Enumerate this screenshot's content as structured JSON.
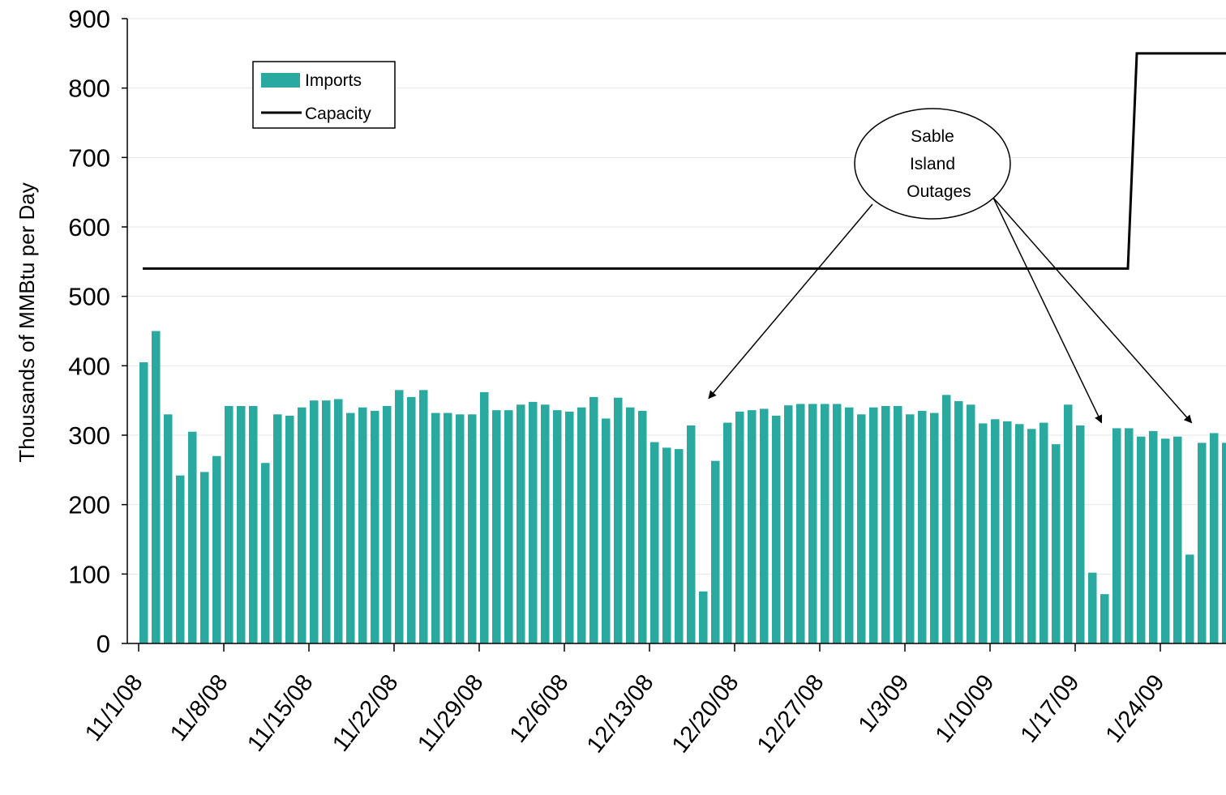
{
  "chart_data": {
    "type": "bar",
    "title": "",
    "xlabel": "",
    "ylabel": "Thousands of MMBtu per Day",
    "ylim": [
      0,
      900
    ],
    "yticks": [
      0,
      100,
      200,
      300,
      400,
      500,
      600,
      700,
      800,
      900
    ],
    "grid": true,
    "legend_position": "top-left",
    "x_start": "11/1/08",
    "x_tick_labels": [
      "11/1/08",
      "11/8/08",
      "11/15/08",
      "11/22/08",
      "11/29/08",
      "12/6/08",
      "12/13/08",
      "12/20/08",
      "12/27/08",
      "1/3/09",
      "1/10/09",
      "1/17/09",
      "1/24/09"
    ],
    "series": [
      {
        "name": "Imports",
        "type": "bar",
        "color": "#2aa9a1",
        "values": [
          405,
          450,
          330,
          242,
          305,
          247,
          270,
          342,
          342,
          342,
          260,
          330,
          328,
          340,
          350,
          350,
          352,
          332,
          340,
          335,
          342,
          365,
          355,
          365,
          332,
          332,
          330,
          330,
          362,
          336,
          336,
          344,
          348,
          344,
          336,
          334,
          340,
          355,
          324,
          354,
          340,
          335,
          290,
          282,
          280,
          314,
          75,
          263,
          318,
          334,
          336,
          338,
          328,
          343,
          345,
          345,
          345,
          345,
          340,
          330,
          340,
          342,
          342,
          330,
          335,
          332,
          358,
          349,
          344,
          317,
          323,
          320,
          316,
          309,
          318,
          287,
          344,
          314,
          102,
          71,
          310,
          310,
          298,
          306,
          295,
          298,
          128,
          289,
          303,
          289
        ]
      },
      {
        "name": "Capacity",
        "type": "line",
        "color": "#000000",
        "segments": [
          {
            "from_day": 0,
            "to_day": 81,
            "value": 540
          },
          {
            "from_day": 82,
            "to_day": 90,
            "value": 850
          }
        ]
      }
    ],
    "annotation": {
      "text_lines": [
        "Sable",
        "Island",
        "Outages"
      ],
      "arrow_target_days": [
        47,
        79.3,
        86.7
      ]
    }
  }
}
